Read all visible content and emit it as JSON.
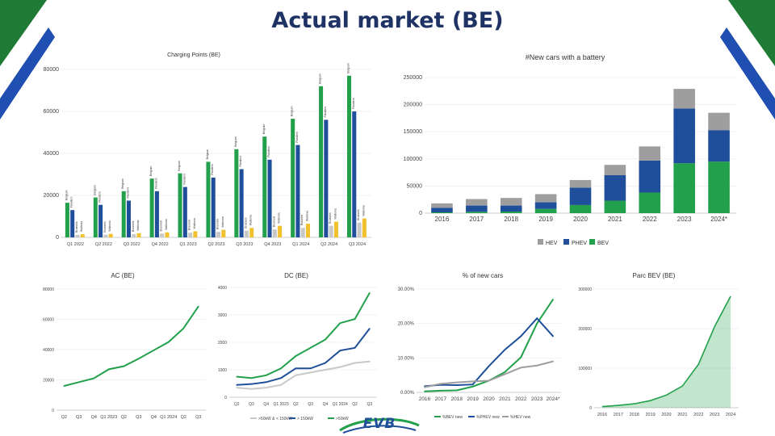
{
  "header": {
    "title": "Actual market (BE)"
  },
  "colors": {
    "bev_green": "#22a04b",
    "phev_blue": "#1f4e9a",
    "hev_gray": "#9e9e9e",
    "yellow": "#f2c12e",
    "light_gray": "#c8c8c8",
    "title_navy": "#1e3264",
    "corner_green": "#1e7a34",
    "corner_blue": "#1f4fb0"
  },
  "logo": {
    "text": "EVB"
  },
  "chart_data": [
    {
      "id": "charging",
      "type": "bar",
      "title": "Charging Points (BE)",
      "ylim": [
        0,
        80000
      ],
      "yticks": [
        0,
        20000,
        40000,
        60000,
        80000
      ],
      "categories": [
        "Q1 2022",
        "Q2 2022",
        "Q3 2022",
        "Q4 2022",
        "Q1 2023",
        "Q2 2023",
        "Q3 2023",
        "Q4 2023",
        "Q1 2024",
        "Q2 2024",
        "Q3 2024"
      ],
      "xtick_labels": [
        "Q1 2022",
        "Q2 2022",
        "Q3 2022",
        "Q4 2022",
        "Q1 2023",
        "Q2 2023",
        "Q3 2023",
        "Q4 2023",
        "Q1 2024",
        "Q2 2024",
        "Q3 2024"
      ],
      "bar_labels": [
        "Belgium",
        "Flanders",
        "Brussels",
        "Wallonia"
      ],
      "series": [
        {
          "values": [
            16500,
            19000,
            22000,
            28000,
            30500,
            36000,
            42000,
            48000,
            56500,
            72000,
            77000
          ],
          "color": "#22a04b"
        },
        {
          "values": [
            13000,
            15500,
            17500,
            22000,
            24000,
            28500,
            32500,
            37000,
            44000,
            56000,
            60000
          ],
          "color": "#1f4e9a"
        },
        {
          "values": [
            1200,
            1300,
            1500,
            1800,
            2200,
            2600,
            3200,
            3800,
            4500,
            5500,
            7000
          ],
          "color": "#c8c8c8"
        },
        {
          "values": [
            1500,
            1700,
            2000,
            2400,
            2900,
            3600,
            4500,
            5500,
            6500,
            7500,
            9000
          ],
          "color": "#f2c12e"
        }
      ]
    },
    {
      "id": "newcars",
      "type": "bar",
      "stacked": true,
      "title": "#New cars with a battery",
      "ylim": [
        0,
        250000
      ],
      "yticks": [
        0,
        50000,
        100000,
        150000,
        200000,
        250000
      ],
      "categories": [
        "2016",
        "2017",
        "2018",
        "2019",
        "2020",
        "2021",
        "2022",
        "2023",
        "2024*"
      ],
      "series": [
        {
          "name": "BEV",
          "values": [
            1500,
            2500,
            3000,
            8000,
            15000,
            23000,
            38000,
            92000,
            95000
          ],
          "color": "#22a04b"
        },
        {
          "name": "PHEV",
          "values": [
            8500,
            11500,
            11000,
            12000,
            32000,
            47000,
            59000,
            101000,
            58000
          ],
          "color": "#1f4e9a"
        },
        {
          "name": "HEV",
          "values": [
            8000,
            12000,
            14000,
            15000,
            14000,
            19000,
            26000,
            36000,
            32000
          ],
          "color": "#9e9e9e"
        }
      ],
      "legend": "bottom"
    },
    {
      "id": "ac",
      "type": "line",
      "title": "AC (BE)",
      "ylim": [
        0,
        80000
      ],
      "yticks": [
        0,
        20000,
        40000,
        60000,
        80000
      ],
      "categories": [
        "Q2",
        "Q3",
        "Q4",
        "Q1 2023",
        "Q2",
        "Q3",
        "Q4",
        "Q1 2024",
        "Q2",
        "Q3"
      ],
      "series": [
        {
          "values": [
            16000,
            18500,
            21000,
            27000,
            29000,
            34000,
            39500,
            45000,
            54000,
            68500
          ],
          "color": "#22a04b"
        }
      ]
    },
    {
      "id": "dc",
      "type": "line",
      "title": "DC (BE)",
      "ylim": [
        0,
        4000
      ],
      "yticks": [
        0,
        1000,
        2000,
        3000,
        4000
      ],
      "categories": [
        "Q2",
        "Q3",
        "Q4",
        "Q1 2023",
        "Q2",
        "Q3",
        "Q4",
        "Q1 2024",
        "Q2",
        "Q3"
      ],
      "series": [
        {
          "name": ">50kW & < 150kW",
          "values": [
            350,
            300,
            350,
            450,
            800,
            900,
            1000,
            1100,
            1250,
            1300
          ],
          "color": "#c8c8c8"
        },
        {
          "name": "> 150kW",
          "values": [
            450,
            480,
            550,
            700,
            1050,
            1050,
            1250,
            1700,
            1800,
            2500
          ],
          "color": "#1f4e9a"
        },
        {
          "name": ">50kW",
          "values": [
            750,
            700,
            800,
            1050,
            1500,
            1800,
            2100,
            2700,
            2850,
            3800
          ],
          "color": "#22a04b"
        }
      ],
      "legend": "bottom"
    },
    {
      "id": "share",
      "type": "line",
      "title": "% of new cars",
      "ylim": [
        0,
        30
      ],
      "yticks": [
        0,
        10,
        20,
        30
      ],
      "ytick_labels": [
        "0.00%",
        "10.00%",
        "20.00%",
        "30.00%"
      ],
      "categories": [
        "2016",
        "2017",
        "2018",
        "2019",
        "2020",
        "2021",
        "2022",
        "2023",
        "2024*"
      ],
      "series": [
        {
          "name": "%BEV new",
          "values": [
            0.3,
            0.5,
            0.6,
            1.7,
            3.4,
            5.9,
            10.2,
            20.0,
            27.0
          ],
          "color": "#22a04b"
        },
        {
          "name": "%PHEV new",
          "values": [
            1.8,
            2.2,
            2.1,
            2.3,
            7.6,
            12.4,
            16.3,
            21.5,
            16.3
          ],
          "color": "#1f4e9a"
        },
        {
          "name": "%HEV new",
          "values": [
            1.5,
            2.5,
            2.9,
            3.2,
            3.4,
            5.3,
            7.2,
            7.8,
            9.0
          ],
          "color": "#9e9e9e"
        }
      ],
      "legend": "bottom"
    },
    {
      "id": "parc",
      "type": "area",
      "title": "Parc BEV (BE)",
      "ylim": [
        0,
        300000
      ],
      "yticks": [
        0,
        100000,
        200000,
        300000
      ],
      "categories": [
        "2016",
        "2017",
        "2018",
        "2019",
        "2020",
        "2021",
        "2022",
        "2023",
        "2024"
      ],
      "series": [
        {
          "values": [
            3000,
            6000,
            10000,
            18000,
            32000,
            55000,
            110000,
            205000,
            282000
          ],
          "color": "#22a04b"
        }
      ]
    }
  ]
}
